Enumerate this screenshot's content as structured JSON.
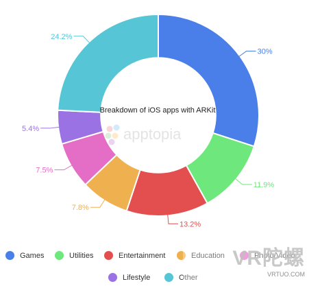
{
  "chart_data": {
    "type": "pie",
    "center_title": "Breakdown of iOS apps with ARKit",
    "categories": [
      "Games",
      "Utilities",
      "Entertainment",
      "Education",
      "Photo/Video",
      "Lifestyle",
      "Other"
    ],
    "values": [
      30,
      11.9,
      13.2,
      7.8,
      7.5,
      5.4,
      24.2
    ],
    "value_labels": [
      "30%",
      "11.9%",
      "13.2%",
      "7.8%",
      "7.5%",
      "5.4%",
      "24.2%"
    ],
    "colors": [
      "#4a7ee8",
      "#6ee87c",
      "#e34e4e",
      "#efb050",
      "#e46ec6",
      "#9a72e4",
      "#56c6d6"
    ],
    "legend_position": "bottom",
    "inner_radius_ratio": 0.57
  },
  "watermark_logo": "apptopia",
  "watermark_overlay": "VR陀螺",
  "watermark_sub": "VRTUO.COM",
  "watermark_wechat": "VR陀螺"
}
